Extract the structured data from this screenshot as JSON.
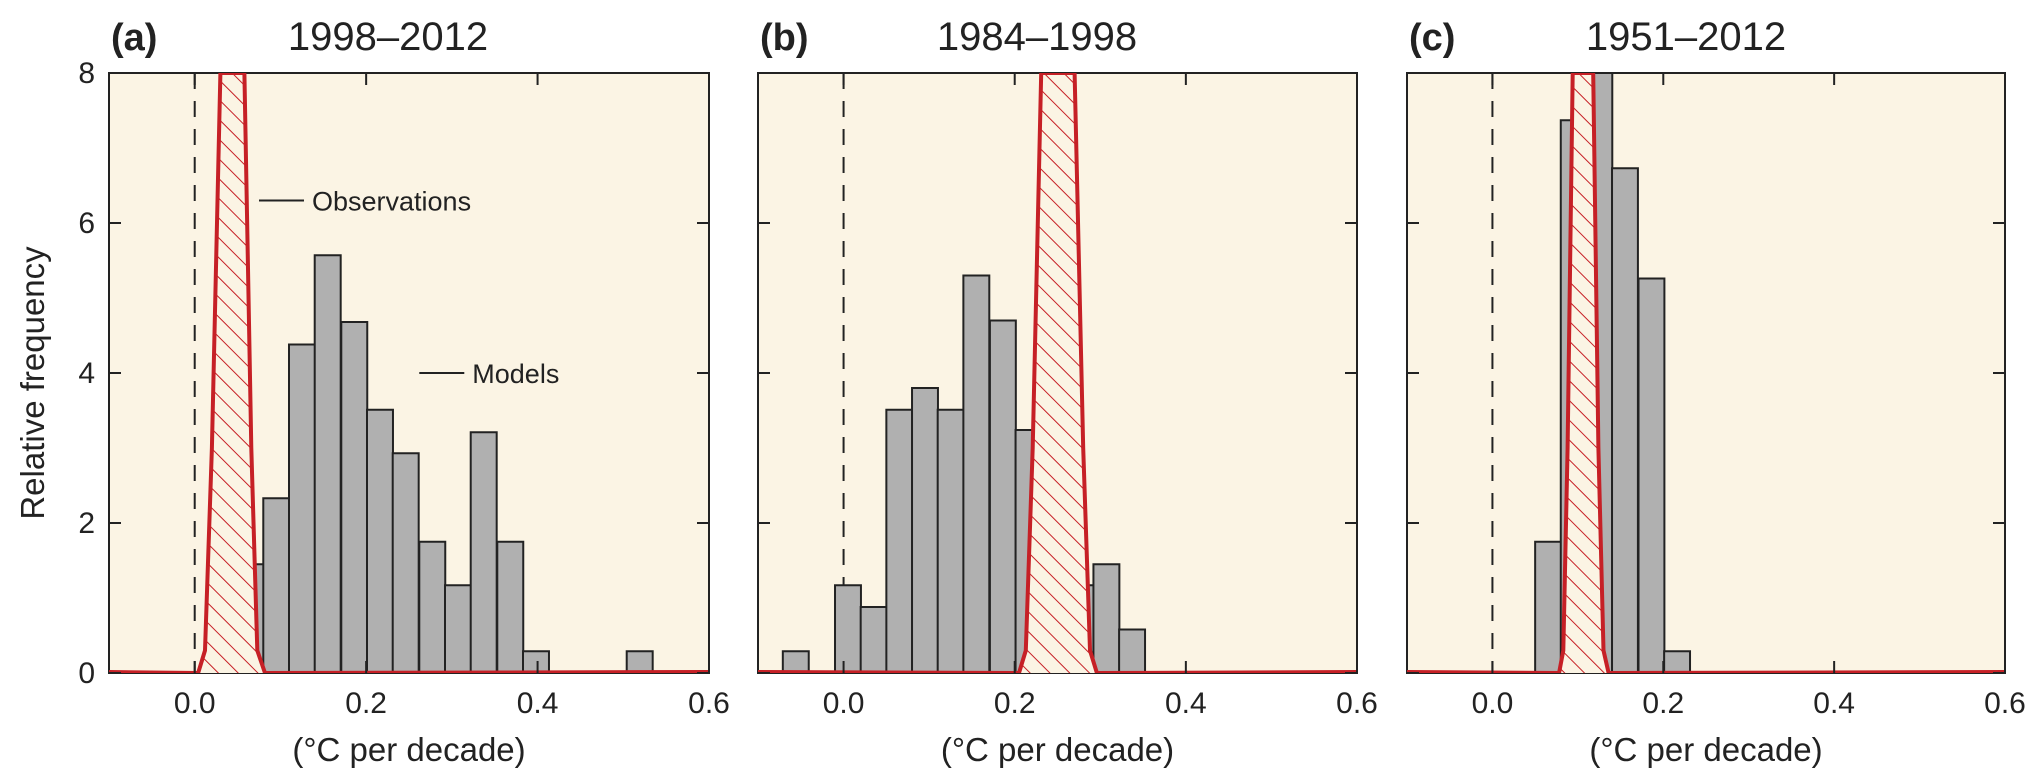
{
  "chart_data": [
    {
      "type": "bar",
      "panel_label": "(a)",
      "title": "1998–2012",
      "xlabel": "(°C per decade)",
      "ylabel": "Relative frequency",
      "xlim": [
        -0.1,
        0.6
      ],
      "ylim": [
        0,
        8
      ],
      "xticks": [
        "0.0",
        "0.2",
        "0.4",
        "0.6"
      ],
      "yticks": [
        "0",
        "2",
        "4",
        "6",
        "8"
      ],
      "bin_width": 0.0303,
      "series": [
        {
          "name": "Models",
          "bins": [
            {
              "x0": 0.05,
              "value": 1.45
            },
            {
              "x0": 0.08,
              "value": 2.33
            },
            {
              "x0": 0.11,
              "value": 4.38
            },
            {
              "x0": 0.14,
              "value": 5.57
            },
            {
              "x0": 0.171,
              "value": 4.68
            },
            {
              "x0": 0.201,
              "value": 3.51
            },
            {
              "x0": 0.231,
              "value": 2.93
            },
            {
              "x0": 0.262,
              "value": 1.75
            },
            {
              "x0": 0.292,
              "value": 1.17
            },
            {
              "x0": 0.322,
              "value": 3.21
            },
            {
              "x0": 0.353,
              "value": 1.75
            },
            {
              "x0": 0.383,
              "value": 0.29
            },
            {
              "x0": 0.504,
              "value": 0.29
            }
          ]
        },
        {
          "name": "Observations",
          "x": [
            0.004,
            0.012,
            0.02,
            0.03,
            0.045,
            0.058,
            0.066,
            0.073,
            0.082
          ],
          "y": [
            0,
            0.3,
            3.0,
            8.2,
            8.2,
            8.2,
            3.0,
            0.3,
            0
          ]
        }
      ],
      "annotations": [
        {
          "text": "Observations",
          "x": 0.075,
          "y": 6.3
        },
        {
          "text": "Models",
          "x": 0.262,
          "y": 4.0
        }
      ],
      "colors": {
        "background": "#fbf4e4",
        "bars": "#b0b0b0",
        "observations": "#c62026"
      }
    },
    {
      "type": "bar",
      "panel_label": "(b)",
      "title": "1984–1998",
      "xlabel": "(°C per decade)",
      "xlim": [
        -0.1,
        0.6
      ],
      "ylim": [
        0,
        8
      ],
      "xticks": [
        "0.0",
        "0.2",
        "0.4",
        "0.6"
      ],
      "yticks": [
        "0",
        "2",
        "4",
        "6",
        "8"
      ],
      "bin_width": 0.0303,
      "series": [
        {
          "name": "Models",
          "bins": [
            {
              "x0": -0.071,
              "value": 0.29
            },
            {
              "x0": -0.01,
              "value": 1.17
            },
            {
              "x0": 0.02,
              "value": 0.88
            },
            {
              "x0": 0.05,
              "value": 3.51
            },
            {
              "x0": 0.08,
              "value": 3.8
            },
            {
              "x0": 0.11,
              "value": 3.51
            },
            {
              "x0": 0.14,
              "value": 5.3
            },
            {
              "x0": 0.171,
              "value": 4.7
            },
            {
              "x0": 0.201,
              "value": 3.24
            },
            {
              "x0": 0.231,
              "value": 3.51
            },
            {
              "x0": 0.262,
              "value": 1.17
            },
            {
              "x0": 0.292,
              "value": 1.45
            },
            {
              "x0": 0.322,
              "value": 0.58
            }
          ]
        },
        {
          "name": "Observations",
          "x": [
            0.205,
            0.213,
            0.221,
            0.231,
            0.25,
            0.27,
            0.28,
            0.288,
            0.296
          ],
          "y": [
            0,
            0.3,
            3.0,
            8.2,
            8.2,
            8.2,
            3.0,
            0.3,
            0
          ]
        }
      ],
      "colors": {
        "background": "#fbf4e4",
        "bars": "#b0b0b0",
        "observations": "#c62026"
      }
    },
    {
      "type": "bar",
      "panel_label": "(c)",
      "title": "1951–2012",
      "xlabel": "(°C per decade)",
      "xlim": [
        -0.1,
        0.6
      ],
      "ylim": [
        0,
        8
      ],
      "xticks": [
        "0.0",
        "0.2",
        "0.4",
        "0.6"
      ],
      "yticks": [
        "0",
        "2",
        "4",
        "6",
        "8"
      ],
      "bin_width": 0.0303,
      "series": [
        {
          "name": "Models",
          "bins": [
            {
              "x0": 0.05,
              "value": 1.75
            },
            {
              "x0": 0.08,
              "value": 7.37
            },
            {
              "x0": 0.11,
              "value": 8.2
            },
            {
              "x0": 0.14,
              "value": 6.73
            },
            {
              "x0": 0.171,
              "value": 5.26
            },
            {
              "x0": 0.201,
              "value": 0.29
            }
          ]
        },
        {
          "name": "Observations",
          "x": [
            0.078,
            0.083,
            0.088,
            0.094,
            0.105,
            0.118,
            0.124,
            0.13,
            0.136
          ],
          "y": [
            0,
            0.3,
            3.0,
            8.2,
            8.2,
            8.2,
            3.0,
            0.3,
            0
          ]
        }
      ],
      "colors": {
        "background": "#fbf4e4",
        "bars": "#b0b0b0",
        "observations": "#c62026"
      }
    }
  ]
}
